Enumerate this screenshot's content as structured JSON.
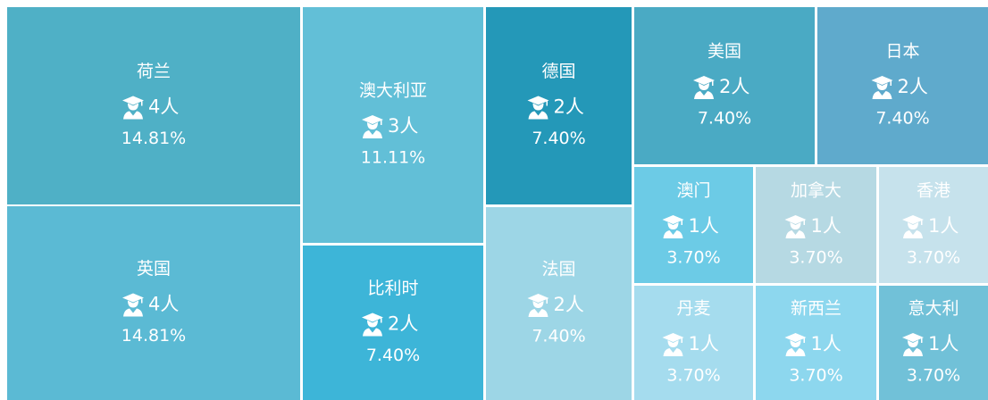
{
  "chart_data": {
    "type": "treemap",
    "categories": [
      "荷兰",
      "英国",
      "澳大利亚",
      "比利时",
      "德国",
      "法国",
      "美国",
      "日本",
      "澳门",
      "加拿大",
      "香港",
      "丹麦",
      "新西兰",
      "意大利"
    ],
    "values": [
      4,
      4,
      3,
      2,
      2,
      2,
      2,
      2,
      1,
      1,
      1,
      1,
      1,
      1
    ],
    "value_labels": [
      "4人",
      "4人",
      "3人",
      "2人",
      "2人",
      "2人",
      "2人",
      "2人",
      "1人",
      "1人",
      "1人",
      "1人",
      "1人",
      "1人"
    ],
    "percents": [
      14.81,
      14.81,
      11.11,
      7.4,
      7.4,
      7.4,
      7.4,
      7.4,
      3.7,
      3.7,
      3.7,
      3.7,
      3.7,
      3.7
    ],
    "percent_labels": [
      "14.81%",
      "14.81%",
      "11.11%",
      "7.40%",
      "7.40%",
      "7.40%",
      "7.40%",
      "7.40%",
      "3.70%",
      "3.70%",
      "3.70%",
      "3.70%",
      "3.70%",
      "3.70%"
    ],
    "colors": [
      "#4fb0c6",
      "#5bbad4",
      "#62bfd7",
      "#3db5d8",
      "#2498b8",
      "#9dd6e6",
      "#4aaac4",
      "#5faacc",
      "#6ccbe6",
      "#b6d9e3",
      "#c6e2ec",
      "#a5dcee",
      "#8dd7ee",
      "#71c1d8"
    ]
  }
}
